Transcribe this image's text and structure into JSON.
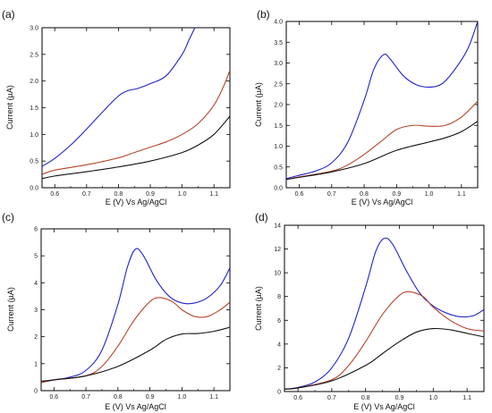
{
  "chart_data": [
    {
      "type": "line",
      "panel_label": "(a)",
      "xlabel": "E (V) Vs Ag/AgCl",
      "ylabel": "Current (µA)",
      "xlim": [
        0.56,
        1.15
      ],
      "ylim": [
        0,
        3.0
      ],
      "xticks": [
        0.6,
        0.7,
        0.8,
        0.9,
        1.0,
        1.1
      ],
      "yticks": [
        0.0,
        0.5,
        1.0,
        1.5,
        2.0,
        2.5,
        3.0
      ],
      "ytick_labels": [
        "0.0",
        "0.5",
        "1.0",
        "1.5",
        "2.0",
        "2.5",
        "3.0"
      ],
      "series": [
        {
          "color": "#2222cc",
          "x": [
            0.56,
            0.6,
            0.65,
            0.7,
            0.75,
            0.8,
            0.83,
            0.86,
            0.9,
            0.95,
            1.0,
            1.02,
            1.04
          ],
          "y": [
            0.4,
            0.55,
            0.8,
            1.1,
            1.42,
            1.72,
            1.82,
            1.86,
            1.95,
            2.1,
            2.5,
            2.75,
            3.0
          ]
        },
        {
          "color": "#b5452a",
          "x": [
            0.56,
            0.6,
            0.7,
            0.8,
            0.85,
            0.9,
            0.95,
            1.0,
            1.05,
            1.1,
            1.13,
            1.15
          ],
          "y": [
            0.25,
            0.33,
            0.43,
            0.56,
            0.66,
            0.76,
            0.86,
            1.0,
            1.2,
            1.55,
            1.9,
            2.2
          ]
        },
        {
          "color": "#111111",
          "x": [
            0.56,
            0.6,
            0.7,
            0.8,
            0.9,
            1.0,
            1.05,
            1.1,
            1.15
          ],
          "y": [
            0.17,
            0.22,
            0.3,
            0.39,
            0.5,
            0.66,
            0.8,
            1.0,
            1.34
          ]
        }
      ]
    },
    {
      "type": "line",
      "panel_label": "(b)",
      "xlabel": "E (V) Vs Ag/AgCl",
      "ylabel": "Current (µA)",
      "xlim": [
        0.56,
        1.15
      ],
      "ylim": [
        0,
        4.0
      ],
      "xticks": [
        0.6,
        0.7,
        0.8,
        0.9,
        1.0,
        1.1
      ],
      "yticks": [
        0.0,
        0.5,
        1.0,
        1.5,
        2.0,
        2.5,
        3.0,
        3.5,
        4.0
      ],
      "ytick_labels": [
        "0.0",
        "0.5",
        "1.0",
        "1.5",
        "2.0",
        "2.5",
        "3.0",
        "3.5",
        "4.0"
      ],
      "series": [
        {
          "color": "#2222cc",
          "x": [
            0.56,
            0.6,
            0.65,
            0.7,
            0.75,
            0.8,
            0.83,
            0.86,
            0.88,
            0.92,
            0.96,
            1.0,
            1.04,
            1.08,
            1.12,
            1.15
          ],
          "y": [
            0.22,
            0.3,
            0.4,
            0.6,
            1.1,
            2.1,
            2.85,
            3.2,
            3.1,
            2.7,
            2.48,
            2.42,
            2.5,
            2.85,
            3.35,
            4.0
          ]
        },
        {
          "color": "#b5452a",
          "x": [
            0.56,
            0.6,
            0.7,
            0.75,
            0.8,
            0.85,
            0.9,
            0.95,
            1.0,
            1.05,
            1.1,
            1.15
          ],
          "y": [
            0.2,
            0.26,
            0.4,
            0.55,
            0.8,
            1.1,
            1.4,
            1.5,
            1.48,
            1.5,
            1.7,
            2.08
          ]
        },
        {
          "color": "#111111",
          "x": [
            0.56,
            0.6,
            0.7,
            0.8,
            0.9,
            1.0,
            1.05,
            1.1,
            1.15
          ],
          "y": [
            0.2,
            0.25,
            0.38,
            0.58,
            0.9,
            1.1,
            1.2,
            1.35,
            1.6
          ]
        }
      ]
    },
    {
      "type": "line",
      "panel_label": "(c)",
      "xlabel": "E (V) Vs Ag/AgCl",
      "ylabel": "Current (µA)",
      "xlim": [
        0.56,
        1.15
      ],
      "ylim": [
        0,
        6
      ],
      "xticks": [
        0.6,
        0.7,
        0.8,
        0.9,
        1.0,
        1.1
      ],
      "yticks": [
        0,
        1,
        2,
        3,
        4,
        5,
        6
      ],
      "ytick_labels": [
        "0",
        "1",
        "2",
        "3",
        "4",
        "5",
        "6"
      ],
      "series": [
        {
          "color": "#2222cc",
          "x": [
            0.56,
            0.6,
            0.65,
            0.7,
            0.75,
            0.8,
            0.83,
            0.855,
            0.88,
            0.92,
            0.96,
            1.0,
            1.04,
            1.08,
            1.12,
            1.15
          ],
          "y": [
            0.3,
            0.4,
            0.5,
            0.75,
            1.5,
            3.2,
            4.6,
            5.25,
            5.0,
            4.1,
            3.5,
            3.25,
            3.25,
            3.45,
            3.9,
            4.55
          ]
        },
        {
          "color": "#b5452a",
          "x": [
            0.56,
            0.6,
            0.7,
            0.75,
            0.8,
            0.85,
            0.9,
            0.93,
            0.97,
            1.0,
            1.04,
            1.08,
            1.12,
            1.15
          ],
          "y": [
            0.3,
            0.4,
            0.55,
            0.9,
            1.65,
            2.6,
            3.3,
            3.45,
            3.3,
            3.0,
            2.75,
            2.75,
            3.0,
            3.28
          ]
        },
        {
          "color": "#111111",
          "x": [
            0.56,
            0.6,
            0.7,
            0.8,
            0.9,
            0.95,
            1.0,
            1.05,
            1.1,
            1.15
          ],
          "y": [
            0.35,
            0.4,
            0.55,
            0.9,
            1.5,
            1.9,
            2.1,
            2.12,
            2.2,
            2.35
          ]
        }
      ]
    },
    {
      "type": "line",
      "panel_label": "(d)",
      "xlabel": "E (V) Vs Ag/AgCl",
      "ylabel": "Current (µA)",
      "xlim": [
        0.56,
        1.15
      ],
      "ylim": [
        0,
        14
      ],
      "xticks": [
        0.6,
        0.7,
        0.8,
        0.9,
        1.0,
        1.1
      ],
      "yticks": [
        0,
        2,
        4,
        6,
        8,
        10,
        12,
        14
      ],
      "ytick_labels": [
        "0",
        "2",
        "4",
        "6",
        "8",
        "10",
        "12",
        "14"
      ],
      "series": [
        {
          "color": "#2222cc",
          "x": [
            0.56,
            0.6,
            0.65,
            0.7,
            0.75,
            0.8,
            0.83,
            0.855,
            0.88,
            0.92,
            0.96,
            1.0,
            1.04,
            1.08,
            1.12,
            1.15
          ],
          "y": [
            0.2,
            0.35,
            0.8,
            2.0,
            4.5,
            8.8,
            11.8,
            12.9,
            12.4,
            10.2,
            8.3,
            7.2,
            6.6,
            6.3,
            6.4,
            6.9
          ]
        },
        {
          "color": "#b5452a",
          "x": [
            0.56,
            0.6,
            0.7,
            0.75,
            0.8,
            0.85,
            0.9,
            0.93,
            0.97,
            1.0,
            1.05,
            1.1,
            1.15
          ],
          "y": [
            0.2,
            0.3,
            1.0,
            2.2,
            4.2,
            6.5,
            8.1,
            8.4,
            8.0,
            7.1,
            6.0,
            5.3,
            5.1
          ]
        },
        {
          "color": "#111111",
          "x": [
            0.56,
            0.6,
            0.7,
            0.8,
            0.85,
            0.9,
            0.95,
            1.0,
            1.05,
            1.1,
            1.15
          ],
          "y": [
            0.2,
            0.3,
            0.9,
            2.2,
            3.2,
            4.2,
            5.0,
            5.3,
            5.2,
            4.9,
            4.6
          ]
        }
      ]
    }
  ]
}
